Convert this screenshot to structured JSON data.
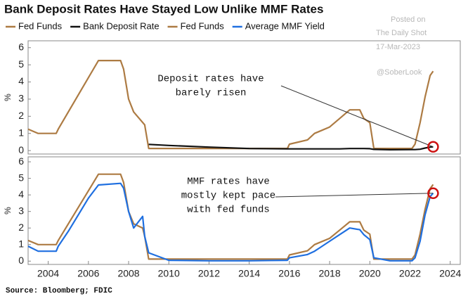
{
  "title": "Bank Deposit Rates Have Stayed Low Unlike MMF Rates",
  "watermark": [
    "Posted on",
    "The Daily Shot",
    "17-Mar-2023",
    "@SoberLook"
  ],
  "source": "Source: Bloomberg; FDIC",
  "chart_data": [
    {
      "type": "line",
      "y_label": "%",
      "annotation": [
        "Deposit rates have",
        "barely risen"
      ],
      "x": [
        2003.0,
        2003.5,
        2004.4,
        2004.5,
        2005.0,
        2005.5,
        2006.0,
        2006.5,
        2007.6,
        2007.75,
        2008.0,
        2008.25,
        2008.8,
        2009.0,
        2010,
        2012,
        2014,
        2015.9,
        2016.0,
        2016.9,
        2017.25,
        2017.5,
        2018.0,
        2018.5,
        2019.0,
        2019.5,
        2019.7,
        2020.0,
        2020.2,
        2021,
        2022.1,
        2022.25,
        2022.5,
        2022.75,
        2023.0,
        2023.15
      ],
      "series": [
        {
          "name": "Fed Funds",
          "color": "#ad7b43",
          "values": [
            1.25,
            1.0,
            1.0,
            1.25,
            2.25,
            3.25,
            4.25,
            5.25,
            5.25,
            4.75,
            3.0,
            2.25,
            1.5,
            0.125,
            0.125,
            0.125,
            0.125,
            0.125,
            0.375,
            0.625,
            1.0,
            1.125,
            1.375,
            1.875,
            2.375,
            2.375,
            1.875,
            1.625,
            0.125,
            0.125,
            0.125,
            0.375,
            1.625,
            3.125,
            4.375,
            4.625
          ]
        },
        {
          "name": "Bank Deposit Rate",
          "color": "#111111",
          "values": [
            null,
            null,
            null,
            null,
            null,
            null,
            null,
            null,
            null,
            null,
            null,
            null,
            null,
            0.36,
            0.3,
            0.2,
            0.12,
            0.1,
            0.1,
            0.1,
            0.1,
            0.1,
            0.1,
            0.1,
            0.12,
            0.12,
            0.12,
            0.11,
            0.07,
            0.05,
            0.06,
            0.06,
            0.08,
            0.15,
            0.2,
            0.22
          ]
        }
      ],
      "xlim": [
        2003,
        2024.5
      ],
      "ylim": [
        -0.2,
        6.4
      ],
      "yticks": [
        0,
        1,
        2,
        3,
        4,
        5,
        6
      ]
    },
    {
      "type": "line",
      "y_label": "%",
      "annotation": [
        "MMF rates have",
        "mostly kept pace",
        "with fed funds"
      ],
      "x": [
        2003.0,
        2003.5,
        2004.4,
        2004.5,
        2005.0,
        2005.5,
        2006.0,
        2006.5,
        2007.6,
        2007.75,
        2008.0,
        2008.25,
        2008.7,
        2008.8,
        2009.0,
        2010,
        2012,
        2014,
        2015.9,
        2016.0,
        2016.9,
        2017.25,
        2017.5,
        2018.0,
        2018.5,
        2019.0,
        2019.5,
        2019.7,
        2020.0,
        2020.2,
        2021,
        2022.1,
        2022.25,
        2022.5,
        2022.75,
        2023.0,
        2023.15
      ],
      "series": [
        {
          "name": "Fed Funds",
          "color": "#ad7b43",
          "values": [
            1.25,
            1.0,
            1.0,
            1.25,
            2.25,
            3.25,
            4.25,
            5.25,
            5.25,
            4.75,
            3.0,
            2.25,
            2.0,
            1.5,
            0.125,
            0.125,
            0.125,
            0.125,
            0.125,
            0.375,
            0.625,
            1.0,
            1.125,
            1.375,
            1.875,
            2.375,
            2.375,
            1.875,
            1.625,
            0.125,
            0.125,
            0.125,
            0.375,
            1.625,
            3.125,
            4.375,
            4.625
          ]
        },
        {
          "name": "Average MMF Yield",
          "color": "#1f6fe0",
          "values": [
            0.9,
            0.6,
            0.6,
            0.9,
            1.8,
            2.8,
            3.8,
            4.6,
            4.7,
            4.4,
            3.0,
            2.0,
            2.7,
            1.5,
            0.5,
            0.05,
            0.02,
            0.02,
            0.05,
            0.2,
            0.4,
            0.6,
            0.8,
            1.2,
            1.6,
            2.0,
            1.9,
            1.6,
            1.3,
            0.2,
            0.02,
            0.02,
            0.2,
            1.2,
            2.8,
            3.9,
            4.1
          ]
        }
      ],
      "xlim": [
        2003,
        2024.5
      ],
      "ylim": [
        -0.2,
        6.3
      ],
      "yticks": [
        0,
        1,
        2,
        3,
        4,
        5,
        6
      ],
      "xticks": [
        2004,
        2006,
        2008,
        2010,
        2012,
        2014,
        2016,
        2018,
        2020,
        2022,
        2024
      ]
    }
  ]
}
